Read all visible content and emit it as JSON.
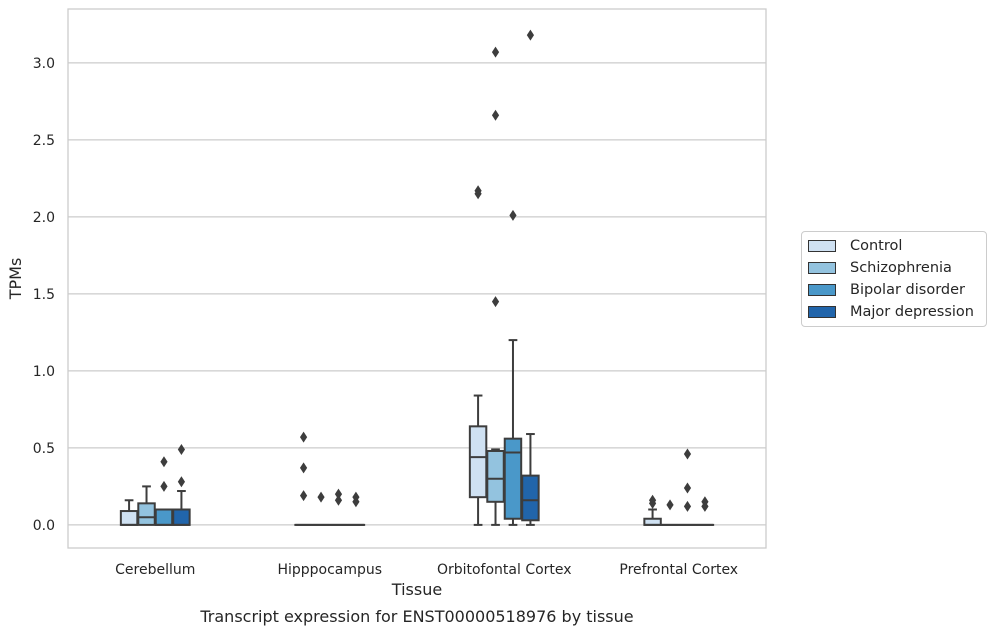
{
  "chart_data": {
    "type": "box",
    "caption": "Transcript expression for ENST00000518976 by tissue",
    "xlabel": "Tissue",
    "ylabel": "TPMs",
    "ylim": [
      -0.15,
      3.35
    ],
    "yticks": [
      0.0,
      0.5,
      1.0,
      1.5,
      2.0,
      2.5,
      3.0
    ],
    "ytick_labels": [
      "0.0",
      "0.5",
      "1.0",
      "1.5",
      "2.0",
      "2.5",
      "3.0"
    ],
    "grid": "horizontal",
    "legend_position": "right",
    "categories": [
      "Cerebellum",
      "Hipppocampus",
      "Orbitofontal Cortex",
      "Prefrontal Cortex"
    ],
    "series": [
      {
        "name": "Control",
        "color": "#cfe1f2",
        "boxes": [
          {
            "q1": 0.0,
            "median": 0.0,
            "q3": 0.09,
            "whisker_low": 0.0,
            "whisker_high": 0.16,
            "outliers": []
          },
          {
            "q1": 0.0,
            "median": 0.0,
            "q3": 0.0,
            "whisker_low": 0.0,
            "whisker_high": 0.0,
            "outliers": [
              0.57,
              0.37,
              0.19
            ]
          },
          {
            "q1": 0.18,
            "median": 0.44,
            "q3": 0.64,
            "whisker_low": 0.0,
            "whisker_high": 0.84,
            "outliers": [
              2.17,
              2.15
            ]
          },
          {
            "q1": 0.0,
            "median": 0.0,
            "q3": 0.04,
            "whisker_low": 0.0,
            "whisker_high": 0.1,
            "outliers": [
              0.16,
              0.14
            ]
          }
        ]
      },
      {
        "name": "Schizophrenia",
        "color": "#93c3df",
        "boxes": [
          {
            "q1": 0.0,
            "median": 0.05,
            "q3": 0.14,
            "whisker_low": 0.0,
            "whisker_high": 0.25,
            "outliers": []
          },
          {
            "q1": 0.0,
            "median": 0.0,
            "q3": 0.0,
            "whisker_low": 0.0,
            "whisker_high": 0.0,
            "outliers": [
              0.18
            ]
          },
          {
            "q1": 0.15,
            "median": 0.3,
            "q3": 0.48,
            "whisker_low": 0.0,
            "whisker_high": 0.49,
            "outliers": [
              3.07,
              2.66,
              1.45
            ]
          },
          {
            "q1": 0.0,
            "median": 0.0,
            "q3": 0.0,
            "whisker_low": 0.0,
            "whisker_high": 0.0,
            "outliers": [
              0.13
            ]
          }
        ]
      },
      {
        "name": "Bipolar disorder",
        "color": "#4a98c9",
        "boxes": [
          {
            "q1": 0.0,
            "median": 0.0,
            "q3": 0.1,
            "whisker_low": 0.0,
            "whisker_high": 0.1,
            "outliers": [
              0.41,
              0.25
            ]
          },
          {
            "q1": 0.0,
            "median": 0.0,
            "q3": 0.0,
            "whisker_low": 0.0,
            "whisker_high": 0.0,
            "outliers": [
              0.2,
              0.16
            ]
          },
          {
            "q1": 0.04,
            "median": 0.47,
            "q3": 0.56,
            "whisker_low": 0.0,
            "whisker_high": 1.2,
            "outliers": [
              2.01
            ]
          },
          {
            "q1": 0.0,
            "median": 0.0,
            "q3": 0.0,
            "whisker_low": 0.0,
            "whisker_high": 0.0,
            "outliers": [
              0.46,
              0.24,
              0.12
            ]
          }
        ]
      },
      {
        "name": "Major depression",
        "color": "#2165ab",
        "boxes": [
          {
            "q1": 0.0,
            "median": 0.0,
            "q3": 0.1,
            "whisker_low": 0.0,
            "whisker_high": 0.22,
            "outliers": [
              0.49,
              0.28
            ]
          },
          {
            "q1": 0.0,
            "median": 0.0,
            "q3": 0.0,
            "whisker_low": 0.0,
            "whisker_high": 0.0,
            "outliers": [
              0.18,
              0.15
            ]
          },
          {
            "q1": 0.03,
            "median": 0.16,
            "q3": 0.32,
            "whisker_low": 0.0,
            "whisker_high": 0.59,
            "outliers": [
              3.18
            ]
          },
          {
            "q1": 0.0,
            "median": 0.0,
            "q3": 0.0,
            "whisker_low": 0.0,
            "whisker_high": 0.0,
            "outliers": [
              0.15,
              0.12
            ]
          }
        ]
      }
    ]
  }
}
